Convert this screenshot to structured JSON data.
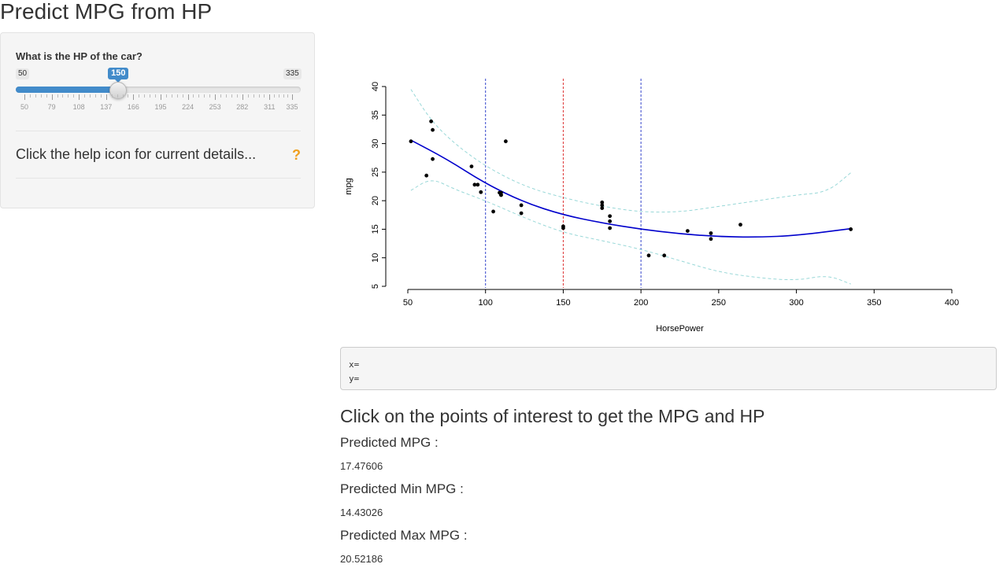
{
  "app": {
    "title": "Predict MPG from HP"
  },
  "sidebar": {
    "slider": {
      "label": "What is the HP of the car?",
      "min": 50,
      "max": 335,
      "value": 150,
      "min_label": "50",
      "max_label": "335",
      "value_label": "150",
      "grid_labels": [
        "50",
        "79",
        "108",
        "137",
        "166",
        "195",
        "224",
        "253",
        "282",
        "311",
        "335"
      ],
      "grid_values": [
        50,
        79,
        108,
        137,
        166,
        195,
        224,
        253,
        282,
        311,
        335
      ]
    },
    "help_text": "Click the help icon for current details...",
    "help_icon": "question-mark-icon",
    "help_icon_glyph": "?"
  },
  "chart_data": {
    "type": "scatter",
    "xlabel": "HorsePower",
    "ylabel": "mpg",
    "xlim": [
      50,
      400
    ],
    "ylim": [
      5,
      40
    ],
    "x_ticks": [
      50,
      100,
      150,
      200,
      250,
      300,
      350,
      400
    ],
    "y_ticks": [
      5,
      10,
      15,
      20,
      25,
      30,
      35,
      40
    ],
    "points": [
      [
        52,
        30.4
      ],
      [
        62,
        24.4
      ],
      [
        65,
        33.9
      ],
      [
        66,
        32.4
      ],
      [
        66,
        27.3
      ],
      [
        91,
        26.0
      ],
      [
        93,
        22.8
      ],
      [
        95,
        22.8
      ],
      [
        97,
        21.5
      ],
      [
        105,
        18.1
      ],
      [
        109,
        21.4
      ],
      [
        110,
        21.0
      ],
      [
        110,
        21.0
      ],
      [
        110,
        21.4
      ],
      [
        113,
        30.4
      ],
      [
        123,
        19.2
      ],
      [
        123,
        17.8
      ],
      [
        150,
        15.2
      ],
      [
        150,
        15.5
      ],
      [
        175,
        19.2
      ],
      [
        175,
        18.7
      ],
      [
        175,
        19.7
      ],
      [
        180,
        16.4
      ],
      [
        180,
        17.3
      ],
      [
        180,
        15.2
      ],
      [
        205,
        10.4
      ],
      [
        215,
        10.4
      ],
      [
        230,
        14.7
      ],
      [
        245,
        13.3
      ],
      [
        245,
        14.3
      ],
      [
        264,
        15.8
      ],
      [
        335,
        15.0
      ]
    ],
    "fit_line": {
      "color": "#0000cc",
      "x": [
        52,
        75,
        100,
        125,
        150,
        175,
        200,
        225,
        250,
        275,
        300,
        335
      ],
      "y": [
        30.6,
        27.3,
        23.0,
        19.7,
        17.5,
        16.1,
        15.0,
        14.2,
        13.7,
        13.6,
        13.9,
        15.1
      ]
    },
    "upper_band": {
      "color": "#99d8d8",
      "x": [
        52,
        65,
        80,
        100,
        125,
        150,
        175,
        200,
        225,
        250,
        275,
        300,
        320,
        335
      ],
      "y": [
        39.5,
        34.0,
        30.0,
        26.0,
        22.5,
        20.5,
        19.0,
        18.0,
        18.0,
        19.0,
        20.0,
        21.0,
        21.5,
        24.9
      ]
    },
    "lower_band": {
      "color": "#99d8d8",
      "x": [
        52,
        65,
        80,
        100,
        125,
        150,
        175,
        200,
        225,
        250,
        275,
        300,
        320,
        335
      ],
      "y": [
        21.8,
        24.0,
        22.0,
        20.0,
        17.0,
        14.4,
        13.0,
        11.5,
        9.5,
        7.5,
        6.5,
        6.0,
        7.0,
        5.4
      ]
    },
    "vlines": [
      {
        "x": 100,
        "color": "#3344cc"
      },
      {
        "x": 150,
        "color": "#dd3333"
      },
      {
        "x": 200,
        "color": "#3344cc"
      }
    ]
  },
  "click_info": {
    "x_label": "x=",
    "y_label": "y="
  },
  "main": {
    "heading": "Click on the points of interest to get the MPG and HP",
    "predicted_mpg_label": "Predicted MPG :",
    "predicted_mpg_value": "17.47606",
    "predicted_min_label": "Predicted Min MPG :",
    "predicted_min_value": "14.43026",
    "predicted_max_label": "Predicted Max MPG :",
    "predicted_max_value": "20.52186"
  }
}
